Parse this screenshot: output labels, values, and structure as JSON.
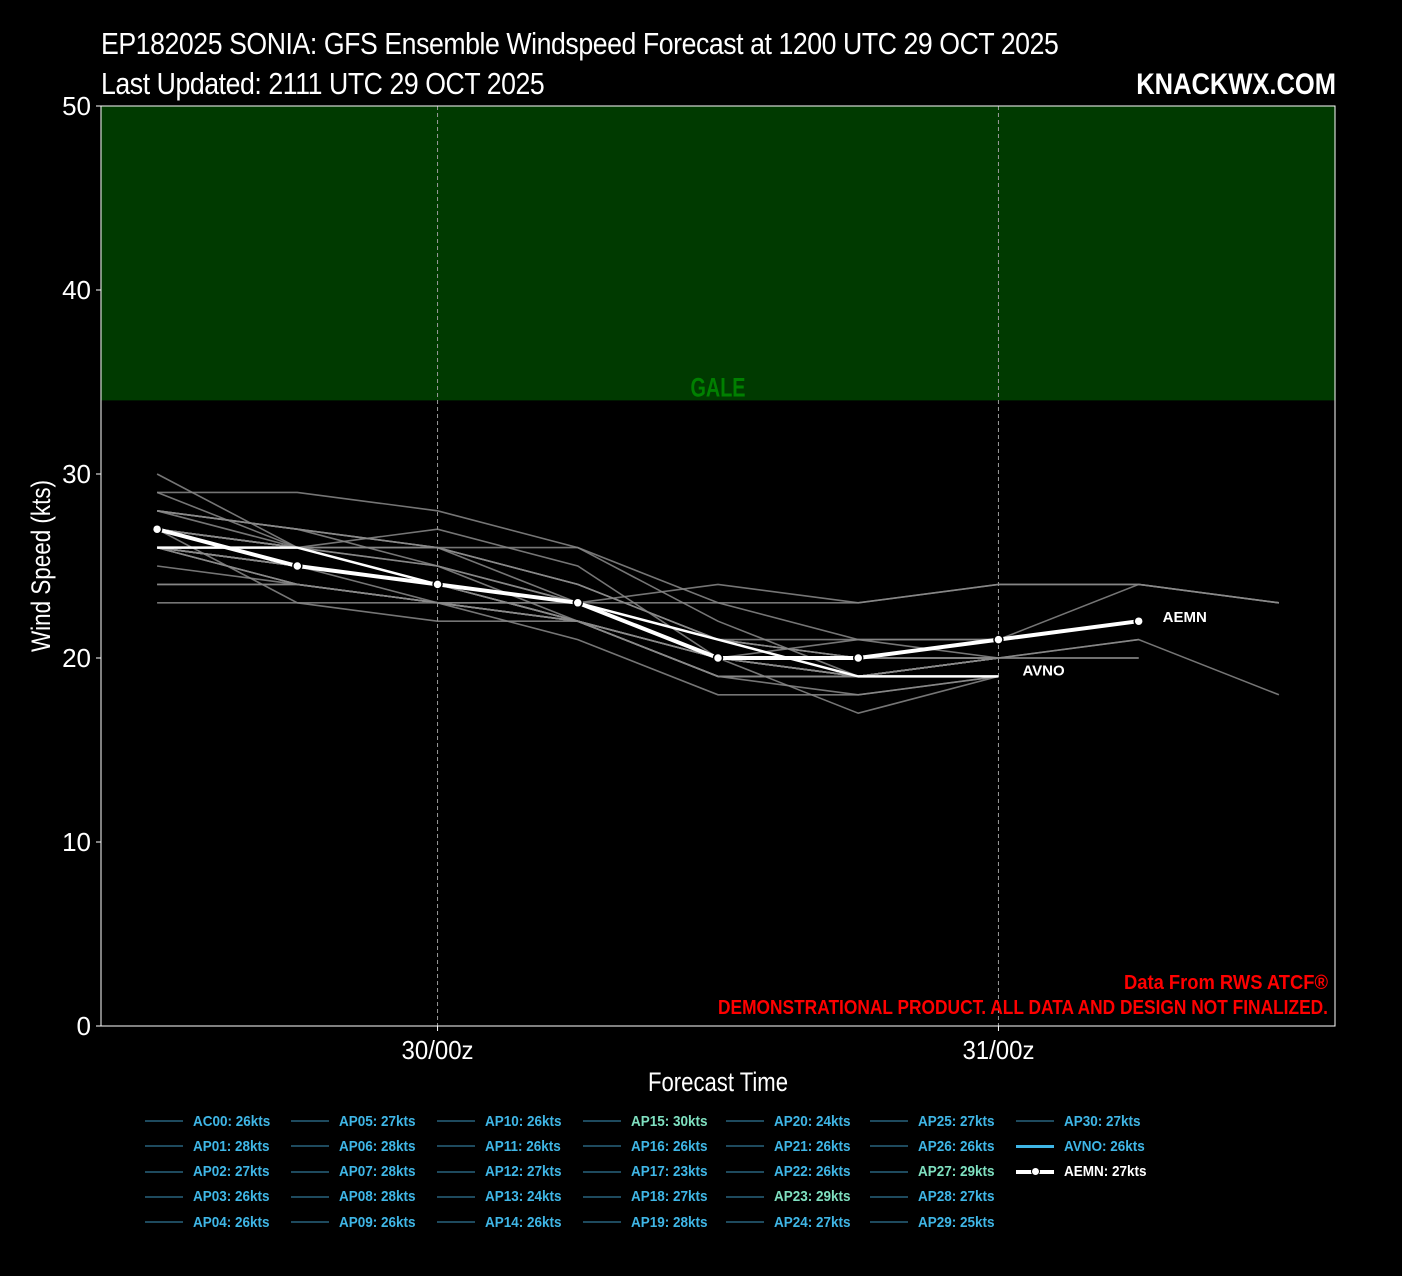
{
  "header": {
    "title_line1": "EP182025 SONIA: GFS Ensemble Windspeed Forecast at 1200 UTC 29 OCT 2025",
    "title_line2": "Last Updated: 2111 UTC 29 OCT 2025",
    "brand": "KNACKWX.COM"
  },
  "notes": {
    "source": "Data From RWS ATCF®",
    "disclaimer": "DEMONSTRATIONAL PRODUCT. ALL DATA AND DESIGN NOT FINALIZED."
  },
  "colors": {
    "background": "#000000",
    "gale_band": "#003a00",
    "gale_text": "#008000",
    "note_text": "#ff0000",
    "legend_text": "#3fb6e6",
    "legend_text_high": "#7fe0c0",
    "member_line": "#8a8a8a",
    "mean_line": "#ffffff"
  },
  "chart_data": {
    "type": "line",
    "xlabel": "Forecast Time",
    "ylabel": "Wind Speed (kts)",
    "ylim": [
      0,
      50
    ],
    "yticks": [
      0,
      10,
      20,
      30,
      40,
      50
    ],
    "x_tick_labels": [
      {
        "step": 2,
        "label": "30/00z"
      },
      {
        "step": 6,
        "label": "31/00z"
      }
    ],
    "x_steps": [
      "12z 29 Oct",
      "18z 29 Oct",
      "00z 30 Oct",
      "06z 30 Oct",
      "12z 30 Oct",
      "18z 30 Oct",
      "00z 31 Oct",
      "06z 31 Oct",
      "12z 31 Oct"
    ],
    "x_range_steps": [
      -0.4,
      8.4
    ],
    "grid": "vertical dashed at day boundaries",
    "bands": [
      {
        "label": "GALE",
        "from": 34,
        "to": 50
      }
    ],
    "series": [
      {
        "name": "AC00",
        "values": [
          26,
          24,
          23,
          22,
          19,
          19,
          19
        ]
      },
      {
        "name": "AP01",
        "values": [
          28,
          27,
          26,
          23,
          20,
          19,
          20,
          21
        ]
      },
      {
        "name": "AP02",
        "values": [
          27,
          26,
          25,
          23,
          20,
          20,
          20
        ]
      },
      {
        "name": "AP03",
        "values": [
          26,
          25,
          24,
          22,
          20,
          19,
          20
        ]
      },
      {
        "name": "AP04",
        "values": [
          26,
          25,
          24,
          23,
          21,
          20,
          21,
          22
        ]
      },
      {
        "name": "AP05",
        "values": [
          27,
          26,
          24,
          22,
          19,
          18,
          19
        ]
      },
      {
        "name": "AP06",
        "values": [
          28,
          27,
          26,
          24,
          21,
          20,
          20
        ]
      },
      {
        "name": "AP07",
        "values": [
          28,
          26,
          24,
          23,
          20,
          21,
          21
        ]
      },
      {
        "name": "AP08",
        "values": [
          28,
          27,
          25,
          22,
          20,
          20,
          21
        ]
      },
      {
        "name": "AP09",
        "values": [
          26,
          24,
          23,
          21,
          18,
          18,
          19
        ]
      },
      {
        "name": "AP10",
        "values": [
          26,
          25,
          24,
          23,
          20,
          20,
          20,
          20
        ]
      },
      {
        "name": "AP11",
        "values": [
          26,
          24,
          23,
          22,
          19,
          19,
          20
        ]
      },
      {
        "name": "AP12",
        "values": [
          27,
          26,
          24,
          23,
          21,
          19,
          20
        ]
      },
      {
        "name": "AP13",
        "values": [
          24,
          24,
          23,
          22,
          20,
          19,
          20
        ]
      },
      {
        "name": "AP14",
        "values": [
          26,
          25,
          24,
          22,
          20,
          19,
          20
        ]
      },
      {
        "name": "AP15",
        "values": [
          30,
          26,
          24,
          23,
          20,
          20,
          21,
          24,
          23
        ]
      },
      {
        "name": "AP16",
        "values": [
          26,
          25,
          23,
          22,
          19,
          19,
          20
        ]
      },
      {
        "name": "AP17",
        "values": [
          23,
          23,
          23,
          23,
          23,
          23,
          24,
          24,
          23
        ]
      },
      {
        "name": "AP18",
        "values": [
          27,
          26,
          25,
          23,
          21,
          20,
          21
        ]
      },
      {
        "name": "AP19",
        "values": [
          28,
          27,
          26,
          24,
          21,
          21,
          21
        ]
      },
      {
        "name": "AP20",
        "values": [
          24,
          24,
          23,
          23,
          24,
          23,
          24,
          24,
          23
        ]
      },
      {
        "name": "AP21",
        "values": [
          26,
          25,
          24,
          22,
          20,
          17,
          19
        ]
      },
      {
        "name": "AP22",
        "values": [
          26,
          25,
          24,
          23,
          20,
          19,
          20
        ]
      },
      {
        "name": "AP23",
        "values": [
          29,
          29,
          28,
          26,
          22,
          19,
          20
        ]
      },
      {
        "name": "AP24",
        "values": [
          27,
          26,
          27,
          25,
          20,
          19,
          20
        ]
      },
      {
        "name": "AP25",
        "values": [
          27,
          23,
          22,
          22,
          19,
          19,
          20,
          21,
          18
        ]
      },
      {
        "name": "AP26",
        "values": [
          26,
          25,
          24,
          23,
          20,
          19,
          20
        ]
      },
      {
        "name": "AP27",
        "values": [
          29,
          26,
          26,
          26,
          23,
          21,
          20
        ]
      },
      {
        "name": "AP28",
        "values": [
          27,
          26,
          26,
          24,
          21,
          19,
          20
        ]
      },
      {
        "name": "AP29",
        "values": [
          25,
          24,
          23,
          22,
          19,
          19,
          20
        ]
      },
      {
        "name": "AP30",
        "values": [
          27,
          26,
          24,
          23,
          21,
          20,
          20,
          20
        ]
      },
      {
        "name": "AVNO",
        "values": [
          26,
          26,
          24,
          23,
          21,
          19,
          19
        ]
      },
      {
        "name": "AEMN",
        "values": [
          27,
          25,
          24,
          23,
          20,
          20,
          21,
          22
        ]
      }
    ],
    "labeled_series": [
      "AEMN",
      "AVNO"
    ],
    "legend": [
      {
        "label": "AC00: 26kts"
      },
      {
        "label": "AP01: 28kts"
      },
      {
        "label": "AP02: 27kts"
      },
      {
        "label": "AP03: 26kts"
      },
      {
        "label": "AP04: 26kts"
      },
      {
        "label": "AP05: 27kts"
      },
      {
        "label": "AP06: 28kts"
      },
      {
        "label": "AP07: 28kts"
      },
      {
        "label": "AP08: 28kts"
      },
      {
        "label": "AP09: 26kts"
      },
      {
        "label": "AP10: 26kts"
      },
      {
        "label": "AP11: 26kts"
      },
      {
        "label": "AP12: 27kts"
      },
      {
        "label": "AP13: 24kts"
      },
      {
        "label": "AP14: 26kts"
      },
      {
        "label": "AP15: 30kts",
        "highlight": true
      },
      {
        "label": "AP16: 26kts"
      },
      {
        "label": "AP17: 23kts"
      },
      {
        "label": "AP18: 27kts"
      },
      {
        "label": "AP19: 28kts"
      },
      {
        "label": "AP20: 24kts"
      },
      {
        "label": "AP21: 26kts"
      },
      {
        "label": "AP22: 26kts"
      },
      {
        "label": "AP23: 29kts",
        "highlight": true
      },
      {
        "label": "AP24: 27kts"
      },
      {
        "label": "AP25: 27kts"
      },
      {
        "label": "AP26: 26kts"
      },
      {
        "label": "AP27: 29kts",
        "highlight": true
      },
      {
        "label": "AP28: 27kts"
      },
      {
        "label": "AP29: 25kts"
      },
      {
        "label": "AP30: 27kts"
      },
      {
        "label": "AVNO: 26kts",
        "kind": "avno"
      },
      {
        "label": "AEMN: 27kts",
        "kind": "aemn"
      }
    ]
  }
}
